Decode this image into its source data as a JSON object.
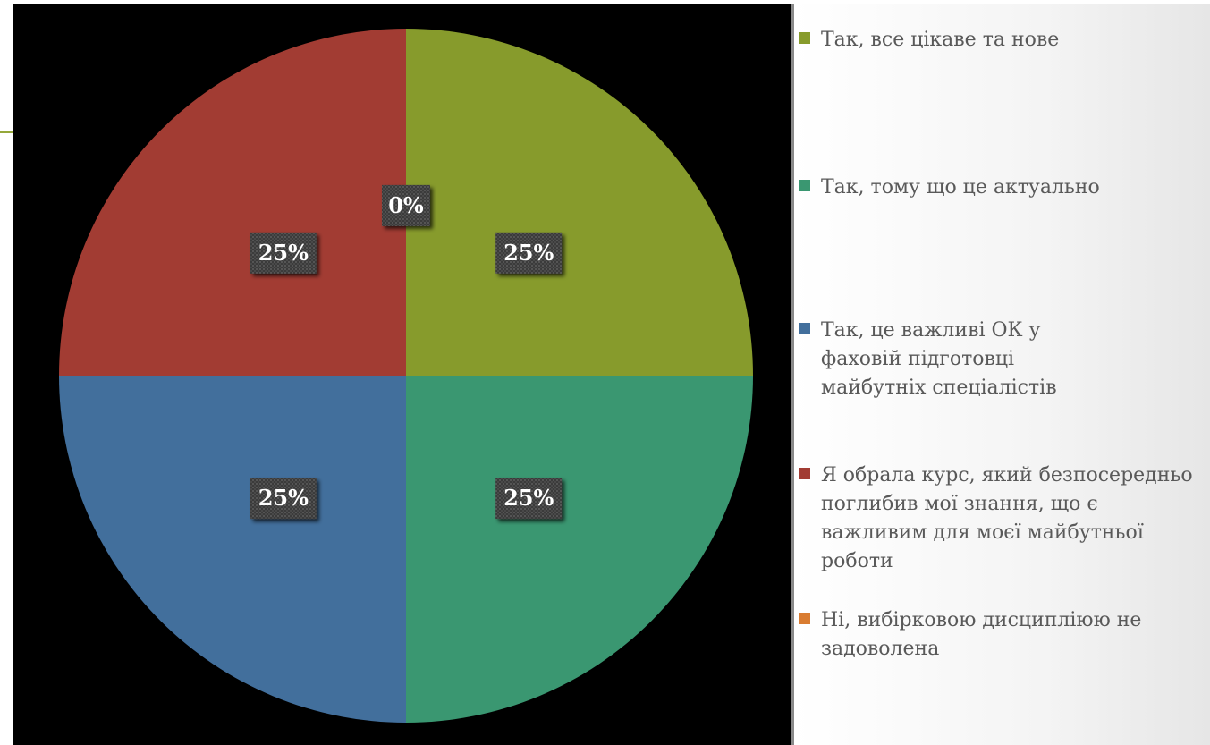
{
  "chart_data": {
    "type": "pie",
    "start_angle": "12 o'clock",
    "direction": "clockwise",
    "labels": [
      "Так, все цікаве та нове",
      "Так, тому що це актуально",
      "Так, це важливі ОК у фаховій підготовці майбутніх спеціалістів",
      "Я обрала курс, який безпосередньо поглибив мої знання, що є важливим для моєї майбутньої роботи",
      "Ні, вибірковою дисципліюю не задоволена"
    ],
    "values": [
      25,
      25,
      25,
      25,
      0
    ],
    "data_labels": [
      "25%",
      "25%",
      "25%",
      "25%",
      "0%"
    ],
    "colors": [
      "#879b2c",
      "#3a9771",
      "#426f9c",
      "#a23c33",
      "#d97c31"
    ],
    "legend_position": "right"
  },
  "legend": {
    "items": [
      "Так, все цікаве та нове",
      "Так, тому що це актуально",
      "Так, це важливі ОК у фаховій підготовці майбутніх спеціалістів",
      "Я обрала курс, який безпосередньо поглибив мої знання, що є важливим для моєї майбутньої роботи",
      "Ні, вибірковою дисципліюю не задоволена"
    ]
  },
  "colors": {
    "background": "#000000",
    "accent": "#95a83a"
  }
}
